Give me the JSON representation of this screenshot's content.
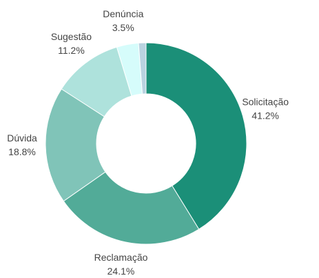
{
  "chart_data": {
    "type": "donut",
    "categories": [
      "Solicitação",
      "Reclamação",
      "Dúvida",
      "Sugestão",
      "Denúncia",
      null
    ],
    "values": [
      41.2,
      24.1,
      18.8,
      11.2,
      3.5,
      1.2
    ],
    "value_labels": [
      "41.2%",
      "24.1%",
      "18.8%",
      "11.2%",
      "3.5%",
      null
    ],
    "colors": [
      "#1b8f78",
      "#52ab98",
      "#80c4b8",
      "#aee2dc",
      "#d6fcfb",
      "#b9d3e0"
    ]
  }
}
